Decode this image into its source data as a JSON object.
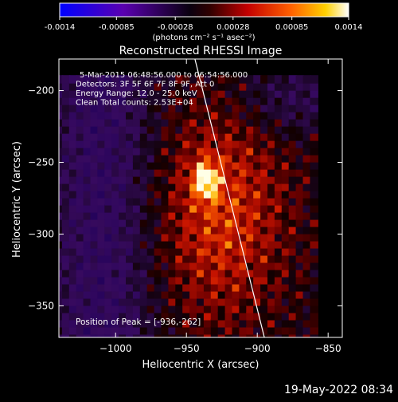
{
  "chart_data": [
    {
      "type": "colorbar",
      "colormap": "blue-purple-black-red-orange-yellow-white",
      "ticks": [
        "-0.0014",
        "-0.00085",
        "-0.00028",
        "0.00028",
        "0.00085",
        "0.0014"
      ],
      "tick_values": [
        -0.0014,
        -0.00085,
        -0.00028,
        0.00028,
        0.00085,
        0.0014
      ],
      "range": [
        -0.0014,
        0.0014
      ],
      "label": "(photons cm⁻² s⁻¹ asec⁻²)"
    },
    {
      "type": "heatmap",
      "title": "Reconstructed RHESSI Image",
      "xlabel": "Heliocentric X (arcsec)",
      "ylabel": "Heliocentric Y (arcsec)",
      "xlim": [
        -1040,
        -840
      ],
      "ylim": [
        -372,
        -178
      ],
      "x_ticks": [
        -1000,
        -950,
        -900,
        -850
      ],
      "x_tick_labels": [
        "−1000",
        "−950",
        "−900",
        "−850"
      ],
      "y_ticks": [
        -200,
        -250,
        -300,
        -350
      ],
      "y_tick_labels": [
        "−200",
        "−250",
        "−300",
        "−350"
      ],
      "annotations": [
        "5-Mar-2015 06:48:56.000 to 06:54:56.000",
        "Detectors: 3F 5F 6F 7F 8F 9F, Att 0",
        "Energy Range: 12.0 - 25.0 keV",
        "Clean     Total counts: 2.53E+04"
      ],
      "peak_label": "Position of Peak = [-936,-262]",
      "peak": [
        -936,
        -262
      ],
      "limb_line": {
        "from": [
          -944,
          -178
        ],
        "to": [
          -895,
          -372
        ]
      },
      "colors": {
        "background": "#000000",
        "line": "#ffffff"
      }
    }
  ],
  "footer": {
    "timestamp": "19-May-2022 08:34"
  }
}
